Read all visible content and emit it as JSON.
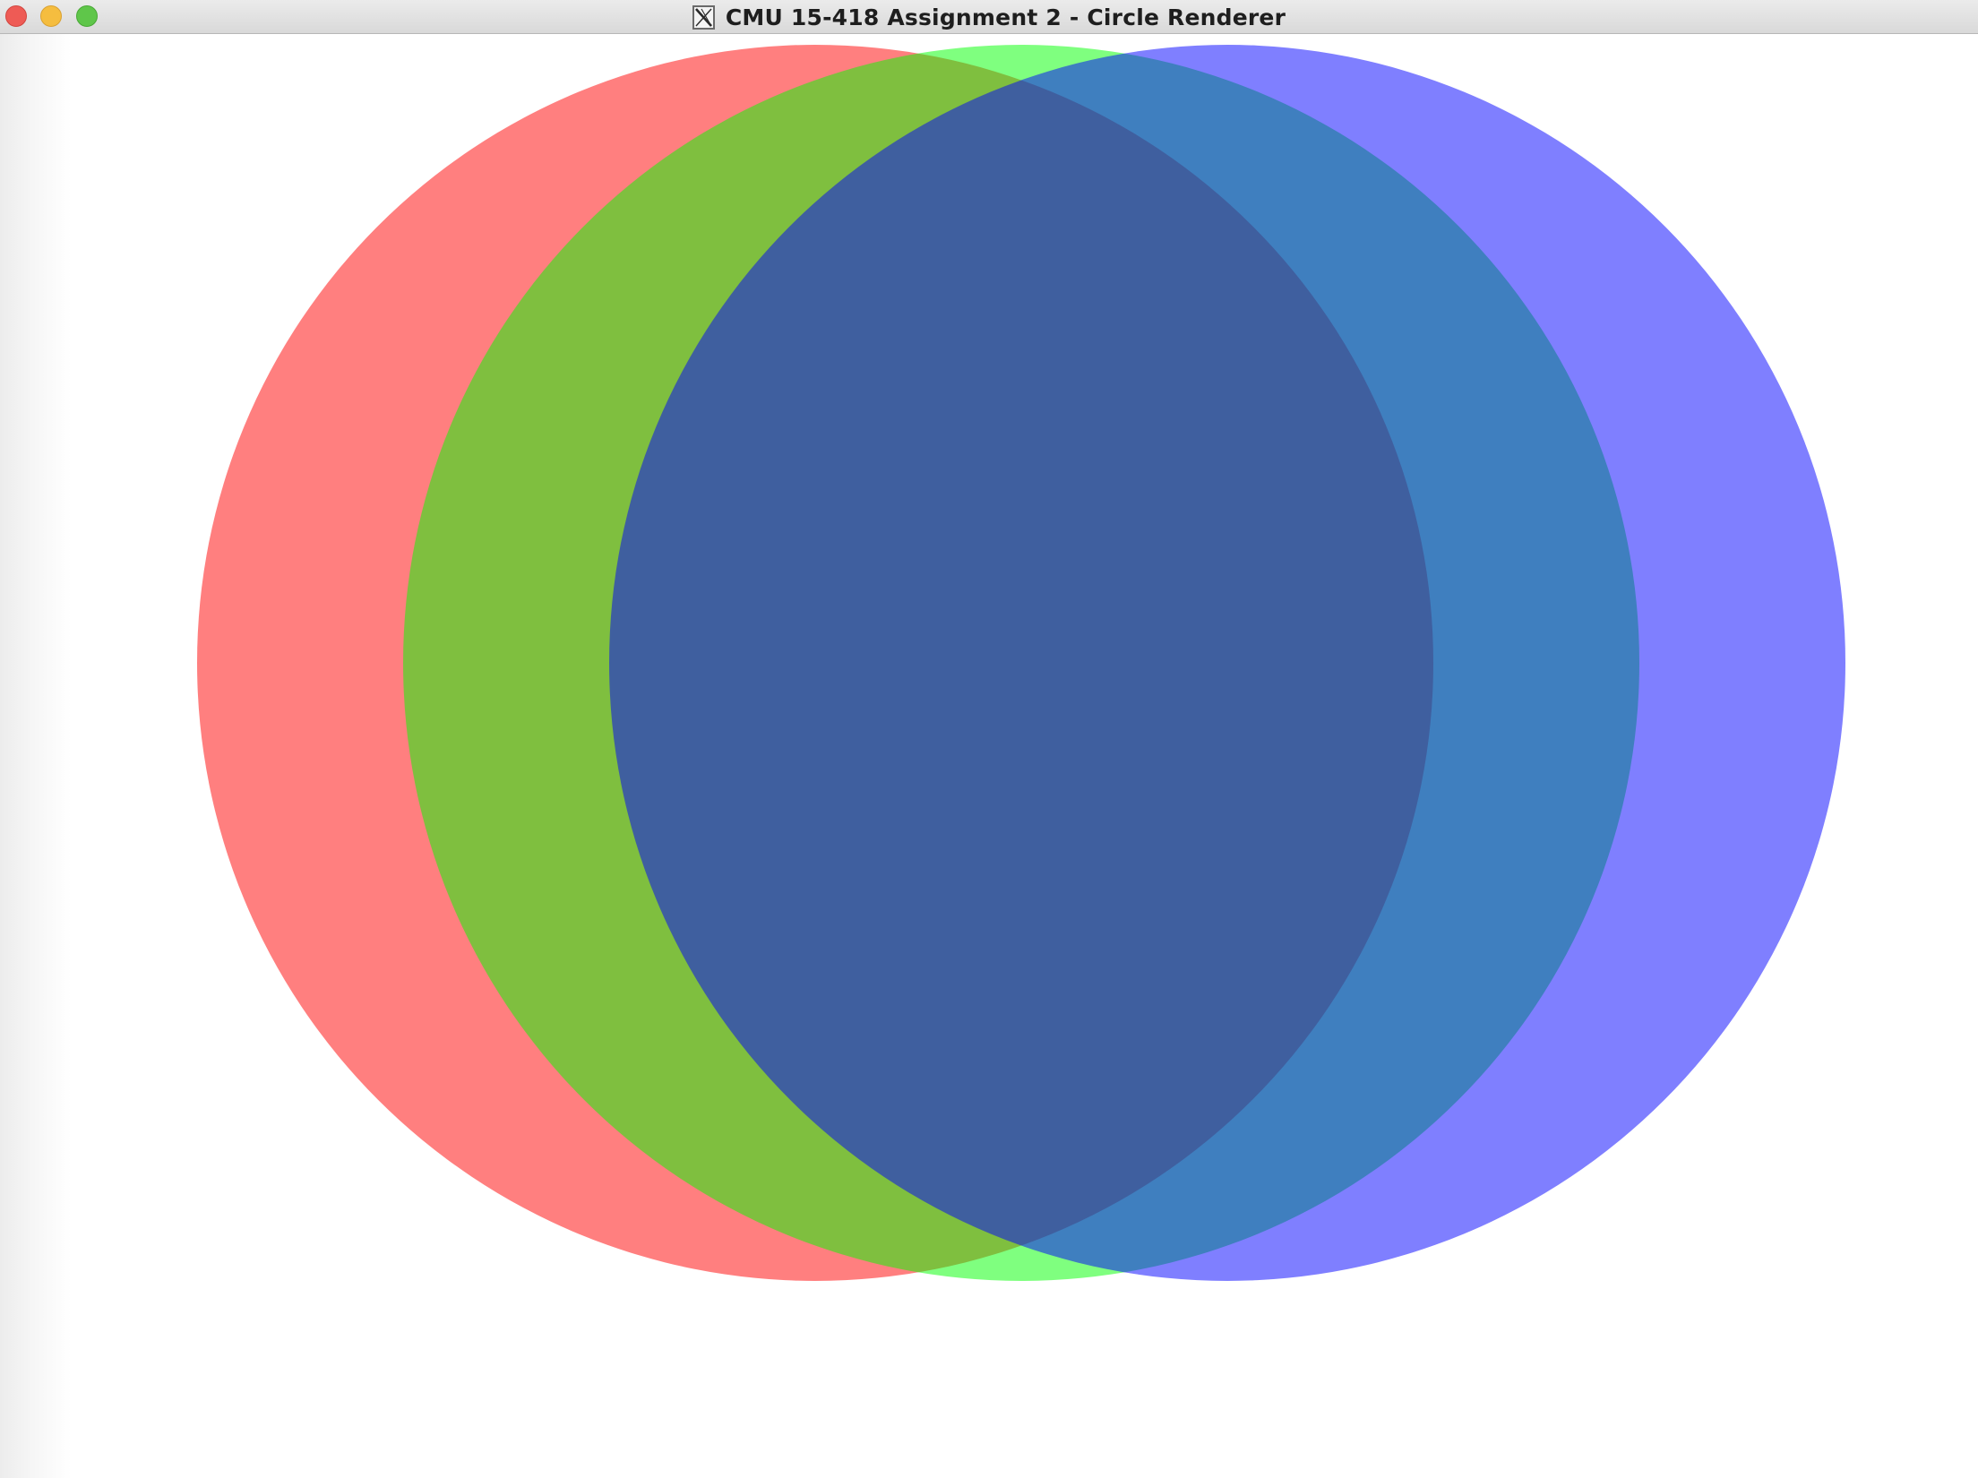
{
  "window": {
    "title": "CMU 15-418 Assignment 2 - Circle Renderer",
    "app_icon": "x11-icon"
  },
  "traffic_lights": {
    "close_color": "#ee5b55",
    "minimize_color": "#f5bd3f",
    "zoom_color": "#5fc64a"
  },
  "canvas": {
    "background": "#ffffff",
    "circles": [
      {
        "name": "red-circle",
        "color": "#ff0000",
        "opacity": 0.5
      },
      {
        "name": "green-circle",
        "color": "#00ff00",
        "opacity": 0.5
      },
      {
        "name": "blue-circle",
        "color": "#0000ff",
        "opacity": 0.5
      }
    ]
  }
}
